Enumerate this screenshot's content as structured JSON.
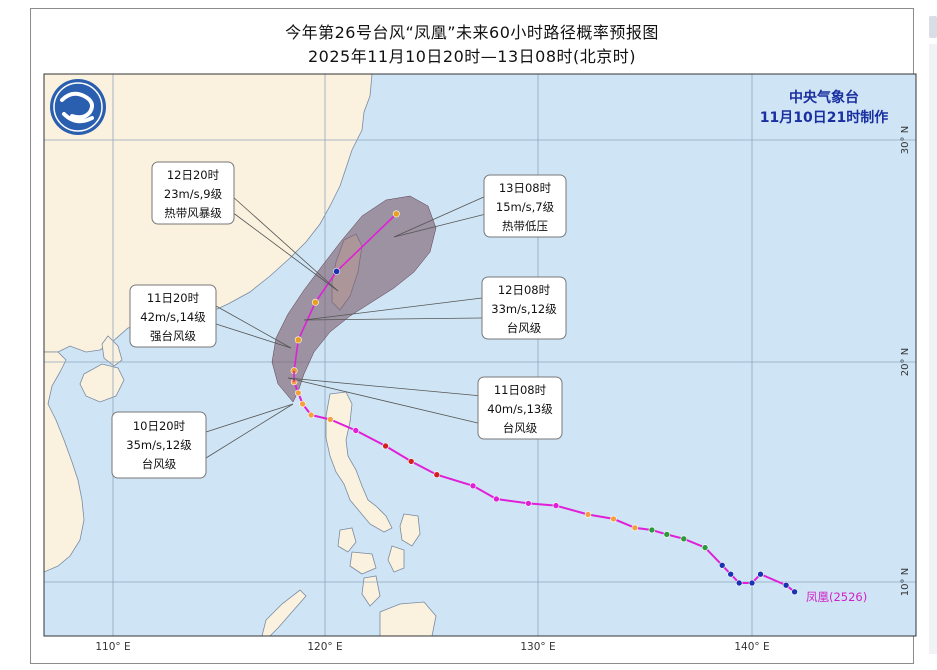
{
  "title": "今年第26号台风“凤凰”未来60小时路径概率预报图",
  "subtitle": "2025年11月10日20时—13日08时(北京时)",
  "agency": {
    "name": "中央气象台",
    "made": "11月10日21时制作"
  },
  "storm_label": "凤凰(2526)",
  "lon_labels": [
    "110° E",
    "120° E",
    "130° E",
    "140° E"
  ],
  "lat_labels": [
    "30° N",
    "20° N",
    "10° N"
  ],
  "forecast_boxes": [
    {
      "time": "12日20时",
      "wind": "23m/s,9级",
      "level": "热带风暴级"
    },
    {
      "time": "13日08时",
      "wind": "15m/s,7级",
      "level": "热带低压"
    },
    {
      "time": "11日20时",
      "wind": "42m/s,14级",
      "level": "强台风级"
    },
    {
      "time": "12日08时",
      "wind": "33m/s,12级",
      "level": "台风级"
    },
    {
      "time": "11日08时",
      "wind": "40m/s,13级",
      "level": "台风级"
    },
    {
      "time": "10日20时",
      "wind": "35m/s,12级",
      "level": "台风级"
    }
  ],
  "colors": {
    "sea": "#cfe5f5",
    "land": "#fbf1df",
    "track": "#e020d8",
    "cone": "#7a5a6a",
    "agency": "#1a2fa0"
  },
  "track_points": [
    {
      "lon": 142.0,
      "lat": 9.6,
      "color": "#1a33b0"
    },
    {
      "lon": 141.6,
      "lat": 9.9,
      "color": "#1a33b0"
    },
    {
      "lon": 140.4,
      "lat": 10.4,
      "color": "#1a33b0"
    },
    {
      "lon": 140.0,
      "lat": 10.0,
      "color": "#1a33b0"
    },
    {
      "lon": 139.4,
      "lat": 10.0,
      "color": "#1a33b0"
    },
    {
      "lon": 139.0,
      "lat": 10.4,
      "color": "#1a33b0"
    },
    {
      "lon": 138.6,
      "lat": 10.8,
      "color": "#1a33b0"
    },
    {
      "lon": 137.8,
      "lat": 11.6,
      "color": "#2a9a3a"
    },
    {
      "lon": 136.8,
      "lat": 12.0,
      "color": "#2a9a3a"
    },
    {
      "lon": 136.0,
      "lat": 12.2,
      "color": "#2a9a3a"
    },
    {
      "lon": 135.3,
      "lat": 12.4,
      "color": "#2a9a3a"
    },
    {
      "lon": 134.5,
      "lat": 12.5,
      "color": "#f5a040"
    },
    {
      "lon": 133.5,
      "lat": 12.9,
      "color": "#f5a040"
    },
    {
      "lon": 132.3,
      "lat": 13.1,
      "color": "#f5a040"
    },
    {
      "lon": 130.8,
      "lat": 13.5,
      "color": "#e020d8"
    },
    {
      "lon": 129.5,
      "lat": 13.6,
      "color": "#e020d8"
    },
    {
      "lon": 128.0,
      "lat": 13.8,
      "color": "#e020d8"
    },
    {
      "lon": 126.9,
      "lat": 14.4,
      "color": "#e020d8"
    },
    {
      "lon": 125.2,
      "lat": 14.9,
      "color": "#d02020"
    },
    {
      "lon": 124.0,
      "lat": 15.5,
      "color": "#d02020"
    },
    {
      "lon": 122.8,
      "lat": 16.2,
      "color": "#d02020"
    },
    {
      "lon": 121.4,
      "lat": 16.9,
      "color": "#e020d8"
    },
    {
      "lon": 120.2,
      "lat": 17.4,
      "color": "#f5a040"
    },
    {
      "lon": 119.3,
      "lat": 17.6,
      "color": "#f5a040"
    },
    {
      "lon": 118.9,
      "lat": 18.1,
      "color": "#f5a040"
    },
    {
      "lon": 118.7,
      "lat": 18.6,
      "color": "#f5a040"
    },
    {
      "lon": 118.5,
      "lat": 19.1,
      "color": "#f5a040"
    }
  ],
  "forecast_points": [
    {
      "lon": 118.5,
      "lat": 19.6,
      "color": "#e8a020"
    },
    {
      "lon": 118.7,
      "lat": 21.0,
      "color": "#e8a020"
    },
    {
      "lon": 119.5,
      "lat": 22.7,
      "color": "#e8a020"
    },
    {
      "lon": 120.5,
      "lat": 24.1,
      "color": "#1a33b0"
    },
    {
      "lon": 123.3,
      "lat": 26.7,
      "color": "#e8a020"
    }
  ]
}
